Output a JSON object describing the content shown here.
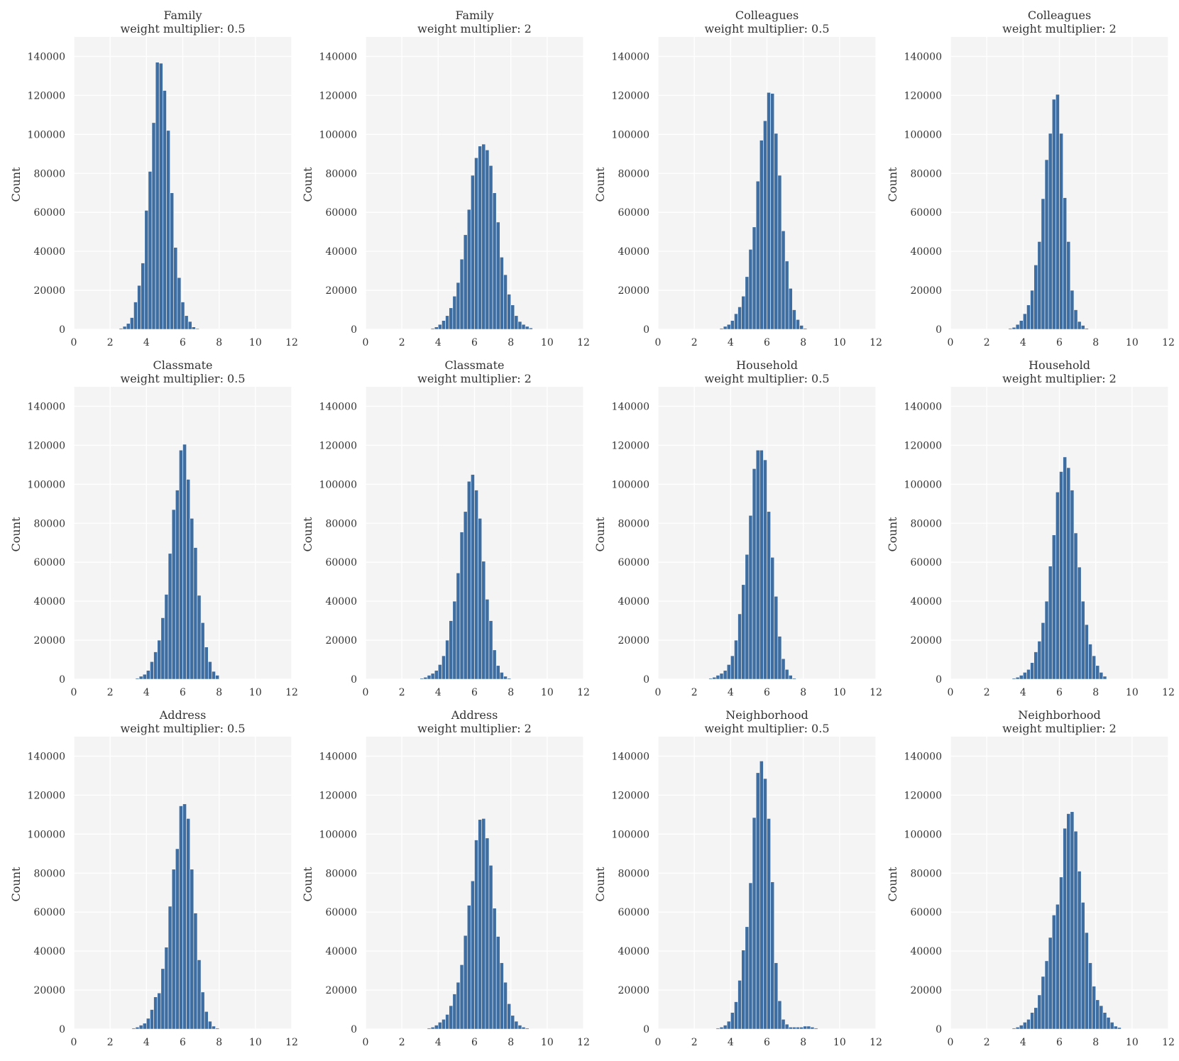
{
  "chart_data": [
    {
      "type": "bar",
      "title": "Family",
      "subtitle": "weight multiplier: 0.5",
      "xlabel": "",
      "ylabel": "Count",
      "xlim": [
        0,
        12
      ],
      "ylim": [
        0,
        150000
      ],
      "xticks": [
        "0",
        "2",
        "4",
        "6",
        "8",
        "10",
        "12"
      ],
      "yticks": [
        "0",
        "20000",
        "40000",
        "60000",
        "80000",
        "100000",
        "120000",
        "140000"
      ],
      "grid": true,
      "bin_start": 2.5,
      "bin_width": 0.2,
      "values": [
        500,
        1500,
        3000,
        6000,
        14000,
        22500,
        34000,
        61000,
        81000,
        106000,
        137000,
        136500,
        122500,
        102000,
        70000,
        42000,
        26500,
        14000,
        7000,
        4000,
        1200,
        400
      ]
    },
    {
      "type": "bar",
      "title": "Family",
      "subtitle": "weight multiplier: 2",
      "xlabel": "",
      "ylabel": "Count",
      "xlim": [
        0,
        12
      ],
      "ylim": [
        0,
        150000
      ],
      "xticks": [
        "0",
        "2",
        "4",
        "6",
        "8",
        "10",
        "12"
      ],
      "yticks": [
        "0",
        "20000",
        "40000",
        "60000",
        "80000",
        "100000",
        "120000",
        "140000"
      ],
      "grid": true,
      "bin_start": 3.6,
      "bin_width": 0.2,
      "values": [
        500,
        1200,
        2500,
        4500,
        7000,
        11000,
        17000,
        24000,
        36000,
        48500,
        61500,
        79000,
        88000,
        94000,
        95000,
        92000,
        84000,
        70000,
        55000,
        37000,
        28000,
        18000,
        12500,
        7000,
        4000,
        2500,
        1500,
        700
      ]
    },
    {
      "type": "bar",
      "title": "Colleagues",
      "subtitle": "weight multiplier: 0.5",
      "xlabel": "",
      "ylabel": "Count",
      "xlim": [
        0,
        12
      ],
      "ylim": [
        0,
        150000
      ],
      "xticks": [
        "0",
        "2",
        "4",
        "6",
        "8",
        "10",
        "12"
      ],
      "yticks": [
        "0",
        "20000",
        "40000",
        "60000",
        "80000",
        "100000",
        "120000",
        "140000"
      ],
      "grid": true,
      "bin_start": 3.4,
      "bin_width": 0.2,
      "values": [
        500,
        1500,
        2500,
        4500,
        8000,
        11500,
        17000,
        27000,
        41000,
        52500,
        76000,
        97000,
        107000,
        121500,
        121000,
        100500,
        79000,
        50500,
        35000,
        21000,
        10000,
        5000,
        2000,
        500
      ]
    },
    {
      "type": "bar",
      "title": "Colleagues",
      "subtitle": "weight multiplier: 2",
      "xlabel": "",
      "ylabel": "Count",
      "xlim": [
        0,
        12
      ],
      "ylim": [
        0,
        150000
      ],
      "xticks": [
        "0",
        "2",
        "4",
        "6",
        "8",
        "10",
        "12"
      ],
      "yticks": [
        "0",
        "20000",
        "40000",
        "60000",
        "80000",
        "100000",
        "120000",
        "140000"
      ],
      "grid": true,
      "bin_start": 3.2,
      "bin_width": 0.2,
      "values": [
        500,
        1000,
        2500,
        4500,
        8000,
        12500,
        20000,
        33000,
        45000,
        67000,
        87000,
        100500,
        118000,
        120500,
        100500,
        67500,
        45000,
        20000,
        10000,
        4000,
        2000,
        500
      ]
    },
    {
      "type": "bar",
      "title": "Classmate",
      "subtitle": "weight multiplier: 0.5",
      "xlabel": "",
      "ylabel": "Count",
      "xlim": [
        0,
        12
      ],
      "ylim": [
        0,
        150000
      ],
      "xticks": [
        "0",
        "2",
        "4",
        "6",
        "8",
        "10",
        "12"
      ],
      "yticks": [
        "0",
        "20000",
        "40000",
        "60000",
        "80000",
        "100000",
        "120000",
        "140000"
      ],
      "grid": true,
      "bin_start": 3.4,
      "bin_width": 0.2,
      "values": [
        500,
        1500,
        2500,
        4500,
        9000,
        14000,
        20000,
        31500,
        43500,
        64500,
        87000,
        97000,
        117500,
        120500,
        102500,
        82500,
        67500,
        43000,
        29000,
        16500,
        9000,
        4000,
        2000
      ]
    },
    {
      "type": "bar",
      "title": "Classmate",
      "subtitle": "weight multiplier: 2",
      "xlabel": "",
      "ylabel": "Count",
      "xlim": [
        0,
        12
      ],
      "ylim": [
        0,
        150000
      ],
      "xticks": [
        "0",
        "2",
        "4",
        "6",
        "8",
        "10",
        "12"
      ],
      "yticks": [
        "0",
        "20000",
        "40000",
        "60000",
        "80000",
        "100000",
        "120000",
        "140000"
      ],
      "grid": true,
      "bin_start": 3.0,
      "bin_width": 0.2,
      "values": [
        500,
        1000,
        2000,
        3000,
        4500,
        7500,
        12000,
        20000,
        30000,
        40000,
        54500,
        75500,
        86000,
        101500,
        105000,
        97000,
        82500,
        60500,
        41000,
        30000,
        15000,
        7000,
        3500,
        1500,
        500
      ]
    },
    {
      "type": "bar",
      "title": "Household",
      "subtitle": "weight multiplier: 0.5",
      "xlabel": "",
      "ylabel": "Count",
      "xlim": [
        0,
        12
      ],
      "ylim": [
        0,
        150000
      ],
      "xticks": [
        "0",
        "2",
        "4",
        "6",
        "8",
        "10",
        "12"
      ],
      "yticks": [
        "0",
        "20000",
        "40000",
        "60000",
        "80000",
        "100000",
        "120000",
        "140000"
      ],
      "grid": true,
      "bin_start": 2.8,
      "bin_width": 0.2,
      "values": [
        500,
        1000,
        2000,
        3000,
        4500,
        7500,
        12000,
        20000,
        33500,
        48500,
        64000,
        84000,
        108000,
        117500,
        117500,
        112500,
        86000,
        62500,
        42500,
        22000,
        10500,
        5000,
        2000,
        500
      ]
    },
    {
      "type": "bar",
      "title": "Household",
      "subtitle": "weight multiplier: 2",
      "xlabel": "",
      "ylabel": "Count",
      "xlim": [
        0,
        12
      ],
      "ylim": [
        0,
        150000
      ],
      "xticks": [
        "0",
        "2",
        "4",
        "6",
        "8",
        "10",
        "12"
      ],
      "yticks": [
        "0",
        "20000",
        "40000",
        "60000",
        "80000",
        "100000",
        "120000",
        "140000"
      ],
      "grid": true,
      "bin_start": 3.4,
      "bin_width": 0.2,
      "values": [
        500,
        1000,
        2000,
        3500,
        5000,
        8500,
        14000,
        19500,
        29000,
        40000,
        58000,
        74000,
        96000,
        106500,
        114000,
        108500,
        97000,
        75000,
        57500,
        40000,
        28000,
        18000,
        12000,
        7000,
        3500,
        1500
      ]
    },
    {
      "type": "bar",
      "title": "Address",
      "subtitle": "weight multiplier: 0.5",
      "xlabel": "",
      "ylabel": "Count",
      "xlim": [
        0,
        12
      ],
      "ylim": [
        0,
        150000
      ],
      "xticks": [
        "0",
        "2",
        "4",
        "6",
        "8",
        "10",
        "12"
      ],
      "yticks": [
        "0",
        "20000",
        "40000",
        "60000",
        "80000",
        "100000",
        "120000",
        "140000"
      ],
      "grid": true,
      "bin_start": 3.2,
      "bin_width": 0.2,
      "values": [
        500,
        1000,
        2000,
        3000,
        5500,
        10000,
        16500,
        18500,
        31000,
        42000,
        63000,
        82000,
        92500,
        114500,
        115500,
        108000,
        82000,
        59500,
        35500,
        19000,
        9000,
        4000,
        1500,
        500
      ]
    },
    {
      "type": "bar",
      "title": "Address",
      "subtitle": "weight multiplier: 2",
      "xlabel": "",
      "ylabel": "Count",
      "xlim": [
        0,
        12
      ],
      "ylim": [
        0,
        150000
      ],
      "xticks": [
        "0",
        "2",
        "4",
        "6",
        "8",
        "10",
        "12"
      ],
      "yticks": [
        "0",
        "20000",
        "40000",
        "60000",
        "80000",
        "100000",
        "120000",
        "140000"
      ],
      "grid": true,
      "bin_start": 3.4,
      "bin_width": 0.2,
      "values": [
        500,
        1000,
        2000,
        3500,
        5000,
        7500,
        12000,
        18000,
        24000,
        33000,
        48000,
        63500,
        76000,
        97000,
        107500,
        108000,
        98000,
        84000,
        62000,
        47500,
        34000,
        24000,
        13000,
        7000,
        4000,
        2000,
        1000,
        500
      ]
    },
    {
      "type": "bar",
      "title": "Neighborhood",
      "subtitle": "weight multiplier: 0.5",
      "xlabel": "",
      "ylabel": "Count",
      "xlim": [
        0,
        12
      ],
      "ylim": [
        0,
        150000
      ],
      "xticks": [
        "0",
        "2",
        "4",
        "6",
        "8",
        "10",
        "12"
      ],
      "yticks": [
        "0",
        "20000",
        "40000",
        "60000",
        "80000",
        "100000",
        "120000",
        "140000"
      ],
      "grid": true,
      "bin_start": 3.2,
      "bin_width": 0.2,
      "values": [
        500,
        1000,
        2000,
        4000,
        8500,
        14000,
        25000,
        40500,
        52500,
        75000,
        108500,
        131500,
        137500,
        128500,
        108000,
        75500,
        34000,
        14500,
        5000,
        2500,
        1000,
        1000,
        1000,
        1000,
        1500,
        1500,
        1000,
        500
      ]
    },
    {
      "type": "bar",
      "title": "Neighborhood",
      "subtitle": "weight multiplier: 2",
      "xlabel": "",
      "ylabel": "Count",
      "xlim": [
        0,
        12
      ],
      "ylim": [
        0,
        150000
      ],
      "xticks": [
        "0",
        "2",
        "4",
        "6",
        "8",
        "10",
        "12"
      ],
      "yticks": [
        "0",
        "20000",
        "40000",
        "60000",
        "80000",
        "100000",
        "120000",
        "140000"
      ],
      "grid": true,
      "bin_start": 3.4,
      "bin_width": 0.2,
      "values": [
        500,
        1000,
        2000,
        3500,
        5000,
        8500,
        11000,
        17500,
        27000,
        35000,
        47000,
        58500,
        64000,
        78000,
        103000,
        110500,
        111500,
        101500,
        81000,
        65000,
        49500,
        34000,
        22000,
        15000,
        12000,
        8500,
        6000,
        3500,
        1500,
        800
      ]
    }
  ]
}
